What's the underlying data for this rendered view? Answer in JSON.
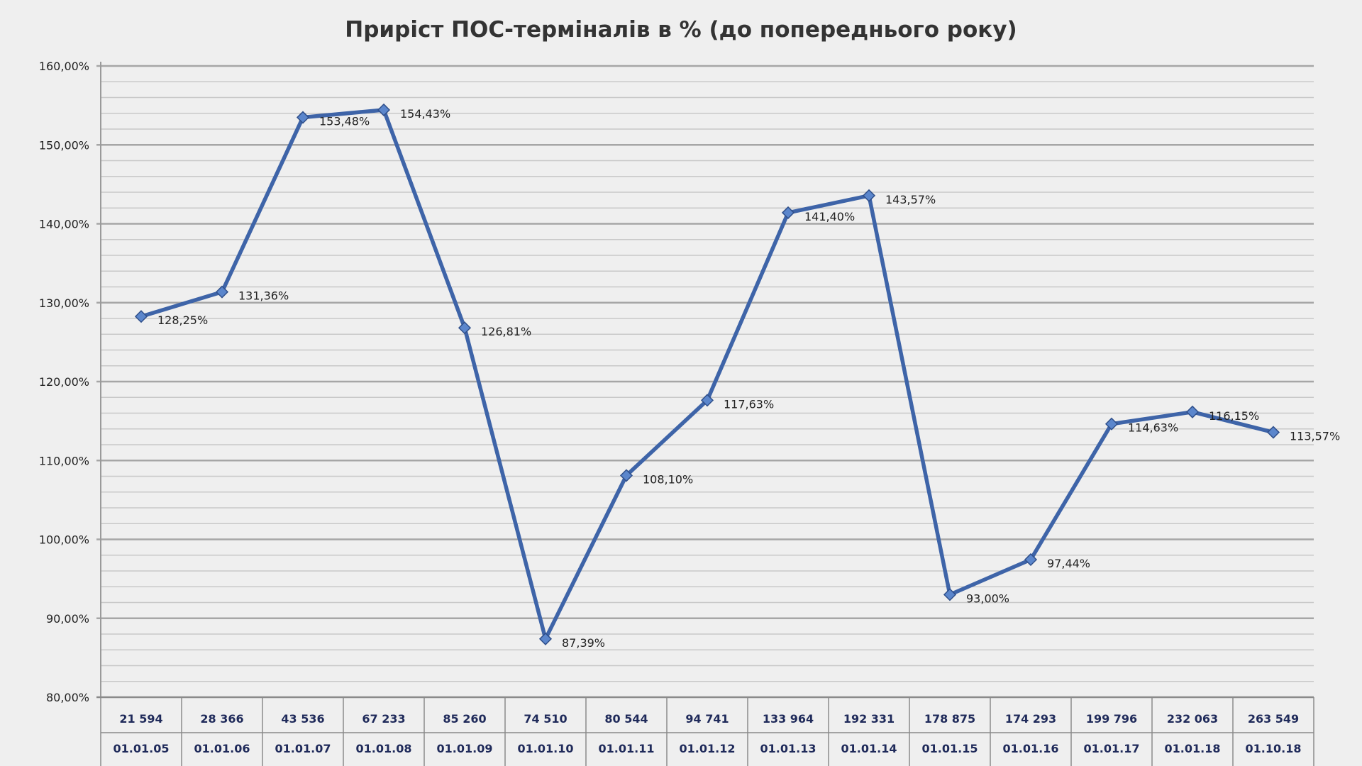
{
  "chart_data": {
    "type": "line",
    "title": "Приріст ПОС-терміналів в % (до попереднього року)",
    "xlabel": "",
    "ylabel": "",
    "ylim": [
      80,
      160
    ],
    "y_ticks": [
      80,
      90,
      100,
      110,
      120,
      130,
      140,
      150,
      160
    ],
    "y_tick_labels": [
      "80,00%",
      "90,00%",
      "100,00%",
      "110,00%",
      "120,00%",
      "130,00%",
      "140,00%",
      "150,00%",
      "160,00%"
    ],
    "grid": true,
    "legend": "none",
    "categories": [
      "01.01.05",
      "01.01.06",
      "01.01.07",
      "01.01.08",
      "01.01.09",
      "01.01.10",
      "01.01.11",
      "01.01.12",
      "01.01.13",
      "01.01.14",
      "01.01.15",
      "01.01.16",
      "01.01.17",
      "01.01.18",
      "01.10.18"
    ],
    "counts": [
      "21 594",
      "28 366",
      "43 536",
      "67 233",
      "85 260",
      "74 510",
      "80 544",
      "94 741",
      "133 964",
      "192 331",
      "178 875",
      "174 293",
      "199 796",
      "232 063",
      "263 549"
    ],
    "series": [
      {
        "values": [
          128.25,
          131.36,
          153.48,
          154.43,
          126.81,
          87.39,
          108.1,
          117.63,
          141.4,
          143.57,
          93.0,
          97.44,
          114.63,
          116.15,
          113.57
        ],
        "labels": [
          "128,25%",
          "131,36%",
          "153,48%",
          "154,43%",
          "126,81%",
          "87,39%",
          "108,10%",
          "117,63%",
          "141,40%",
          "143,57%",
          "93,00%",
          "97,44%",
          "114,63%",
          "116,15%",
          "113,57%"
        ]
      }
    ],
    "colors": {
      "line": "#3e64a8",
      "marker": "#5b86cc",
      "grid_major": "#a6a6a6",
      "grid_minor": "#c8c8c8",
      "background": "#efefef"
    }
  }
}
